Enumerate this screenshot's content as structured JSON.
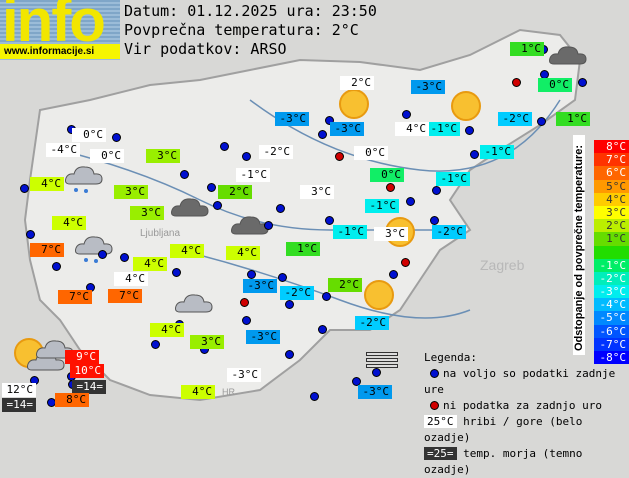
{
  "header": {
    "logo": "info",
    "url": "www.informacije.si",
    "date_line": "Datum: 01.12.2025 ura: 23:50",
    "avg_line": "Povprečna temperatura: 2°C",
    "source_line": "Vir podatkov: ARSO"
  },
  "map_labels": {
    "cities": [
      "Zagreb",
      "Ljubljana",
      "HR"
    ]
  },
  "temperatures": [
    {
      "t": "1°C",
      "type": "anomaly",
      "c": "#33dd22"
    },
    {
      "t": "0°C",
      "type": "anomaly",
      "c": "#11ee66"
    },
    {
      "t": "1°C",
      "type": "anomaly",
      "c": "#33dd22"
    },
    {
      "t": "-2°C",
      "type": "anomaly",
      "c": "#00ccff"
    },
    {
      "t": "-1°C",
      "type": "anomaly",
      "c": "#00eeee"
    },
    {
      "t": "-1°C",
      "type": "anomaly",
      "c": "#00eeee"
    },
    {
      "t": "4°C",
      "type": "mountain",
      "c": "#ffffff"
    },
    {
      "t": "-3°C",
      "type": "anomaly",
      "c": "#0099ee"
    },
    {
      "t": "2°C",
      "type": "mountain",
      "c": "#ffffff"
    },
    {
      "t": "-3°C",
      "type": "anomaly",
      "c": "#0099ee"
    },
    {
      "t": "-3°C",
      "type": "anomaly",
      "c": "#0099ee"
    },
    {
      "t": "0°C",
      "type": "mountain",
      "c": "#ffffff"
    },
    {
      "t": "0°C",
      "type": "anomaly",
      "c": "#11ee66"
    },
    {
      "t": "-1°C",
      "type": "anomaly",
      "c": "#00eeee"
    },
    {
      "t": "-1°C",
      "type": "anomaly",
      "c": "#00eeee"
    },
    {
      "t": "-2°C",
      "type": "anomaly",
      "c": "#00ccff"
    },
    {
      "t": "3°C",
      "type": "mountain",
      "c": "#ffffff"
    },
    {
      "t": "-1°C",
      "type": "anomaly",
      "c": "#00eeee"
    },
    {
      "t": "1°C",
      "type": "anomaly",
      "c": "#33dd22"
    },
    {
      "t": "2°C",
      "type": "anomaly",
      "c": "#66dd00"
    },
    {
      "t": "-2°C",
      "type": "anomaly",
      "c": "#00ccff"
    },
    {
      "t": "-3°C",
      "type": "anomaly",
      "c": "#0099ee"
    },
    {
      "t": "-2°C",
      "type": "anomaly",
      "c": "#00ccff"
    },
    {
      "t": "-3°C",
      "type": "anomaly",
      "c": "#0099ee"
    },
    {
      "t": "-3°C",
      "type": "mountain",
      "c": "#ffffff"
    },
    {
      "t": "-3°C",
      "type": "anomaly",
      "c": "#0099ee"
    },
    {
      "t": "-2°C",
      "type": "mountain",
      "c": "#ffffff"
    },
    {
      "t": "-1°C",
      "type": "mountain",
      "c": "#ffffff"
    },
    {
      "t": "2°C",
      "type": "anomaly",
      "c": "#66dd00"
    },
    {
      "t": "3°C",
      "type": "mountain",
      "c": "#ffffff"
    },
    {
      "t": "4°C",
      "type": "anomaly",
      "c": "#ccff00"
    },
    {
      "t": "4°C",
      "type": "anomaly",
      "c": "#ccff00"
    },
    {
      "t": "4°C",
      "type": "anomaly",
      "c": "#ccff00"
    },
    {
      "t": "4°C",
      "type": "mountain",
      "c": "#ffffff"
    },
    {
      "t": "7°C",
      "type": "anomaly",
      "c": "#ff6600"
    },
    {
      "t": "7°C",
      "type": "anomaly",
      "c": "#ff6600"
    },
    {
      "t": "7°C",
      "type": "anomaly",
      "c": "#ff6600"
    },
    {
      "t": "4°C",
      "type": "anomaly",
      "c": "#ccff00"
    },
    {
      "t": "4°C",
      "type": "anomaly",
      "c": "#ccff00"
    },
    {
      "t": "-4°C",
      "type": "mountain",
      "c": "#ffffff"
    },
    {
      "t": "0°C",
      "type": "mountain",
      "c": "#ffffff"
    },
    {
      "t": "0°C",
      "type": "mountain",
      "c": "#ffffff"
    },
    {
      "t": "3°C",
      "type": "anomaly",
      "c": "#99ee00"
    },
    {
      "t": "3°C",
      "type": "anomaly",
      "c": "#99ee00"
    },
    {
      "t": "3°C",
      "type": "anomaly",
      "c": "#99ee00"
    },
    {
      "t": "4°C",
      "type": "anomaly",
      "c": "#ccff00"
    },
    {
      "t": "3°C",
      "type": "anomaly",
      "c": "#99ee00"
    },
    {
      "t": "4°C",
      "type": "anomaly",
      "c": "#ccff00"
    },
    {
      "t": "9°C",
      "type": "anomaly",
      "c": "#ff1100"
    },
    {
      "t": "10°C",
      "type": "anomaly",
      "c": "#ff1100"
    },
    {
      "t": "=14=",
      "type": "sea",
      "c": "#333333"
    },
    {
      "t": "12°C",
      "type": "mountain",
      "c": "#ffffff"
    },
    {
      "t": "=14=",
      "type": "sea",
      "c": "#333333"
    },
    {
      "t": "8°C",
      "type": "anomaly",
      "c": "#ff6600"
    }
  ],
  "scale": {
    "title": "Odstopanje od povprečne temperature:",
    "steps": [
      {
        "t": "8°C",
        "c": "#ff0000"
      },
      {
        "t": "7°C",
        "c": "#ff3300"
      },
      {
        "t": "6°C",
        "c": "#ff6600"
      },
      {
        "t": "5°C",
        "c": "#ff9900"
      },
      {
        "t": "4°C",
        "c": "#ffcc00"
      },
      {
        "t": "3°C",
        "c": "#ffff00"
      },
      {
        "t": "2°C",
        "c": "#bbee00"
      },
      {
        "t": "1°C",
        "c": "#66dd00"
      },
      {
        "t": "",
        "c": "#22dd00"
      },
      {
        "t": "-1°C",
        "c": "#00ee66"
      },
      {
        "t": "-2°C",
        "c": "#00eebb"
      },
      {
        "t": "-3°C",
        "c": "#00eeee"
      },
      {
        "t": "-4°C",
        "c": "#00bbff"
      },
      {
        "t": "-5°C",
        "c": "#0088ff"
      },
      {
        "t": "-6°C",
        "c": "#0055ff"
      },
      {
        "t": "-7°C",
        "c": "#0033ff"
      },
      {
        "t": "-8°C",
        "c": "#0000ff"
      }
    ]
  },
  "legend": {
    "title": "Legenda:",
    "available": "na voljo so podatki zadnje ure",
    "no_data": "ni podatka za zadnjo uro",
    "mountain_sample": "25°C",
    "mountain_text": "hribi / gore (belo ozadje)",
    "sea_sample": "=25=",
    "sea_text": "temp. morja (temno ozadje)"
  }
}
